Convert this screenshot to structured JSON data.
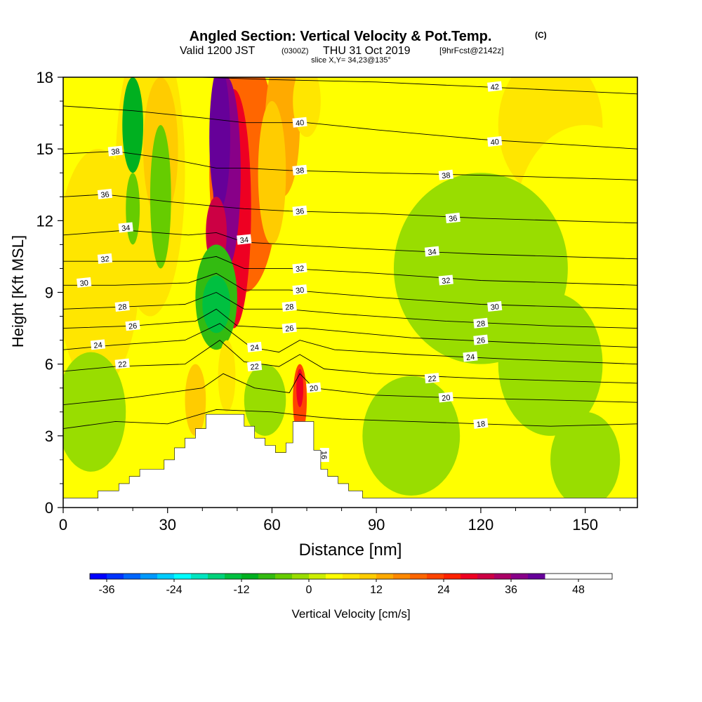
{
  "chart_data": {
    "type": "heatmap",
    "title": "Angled Section: Vertical Velocity & Pot.Temp.",
    "title_mark": "(C)",
    "subtitle": {
      "prefix": "Valid 1200 JST",
      "utc": "(0300Z)",
      "date": "THU 31 Oct 2019",
      "forecast": "[9hrFcst@2142z]"
    },
    "slice_label": "slice X,Y= 34,23@135°",
    "xlabel": "Distance [nm]",
    "ylabel": "Height [Kft MSL]",
    "xlim": [
      0,
      165
    ],
    "ylim": [
      0,
      18
    ],
    "x_ticks": [
      "0",
      "30",
      "60",
      "90",
      "120",
      "150"
    ],
    "y_ticks": [
      "0",
      "3",
      "6",
      "9",
      "12",
      "15",
      "18"
    ],
    "colorbar": {
      "label": "Vertical Velocity [cm/s]",
      "ticks": [
        "-36",
        "-24",
        "-12",
        "0",
        "12",
        "24",
        "36",
        "48"
      ],
      "tick_values": [
        -36,
        -24,
        -12,
        0,
        12,
        24,
        36,
        48
      ],
      "min": -39,
      "max": 54,
      "step": 3,
      "colors": [
        "#0000ff",
        "#0033ff",
        "#0066ff",
        "#0099ff",
        "#00ccff",
        "#00ffff",
        "#00e5c0",
        "#00d27a",
        "#00c040",
        "#00b020",
        "#33bb11",
        "#66cc00",
        "#99dd00",
        "#ccee00",
        "#ffff00",
        "#ffe600",
        "#ffcc00",
        "#ffaa00",
        "#ff8800",
        "#ff6600",
        "#ff4400",
        "#ff2200",
        "#ee0022",
        "#cc0044",
        "#aa0066",
        "#880088",
        "#660099"
      ]
    },
    "terrain_kft": [
      [
        0,
        0.4
      ],
      [
        10,
        0.4
      ],
      [
        10,
        0.7
      ],
      [
        16,
        0.7
      ],
      [
        16,
        1.0
      ],
      [
        19,
        1.0
      ],
      [
        19,
        1.3
      ],
      [
        22,
        1.3
      ],
      [
        22,
        1.6
      ],
      [
        29,
        1.6
      ],
      [
        29,
        2.0
      ],
      [
        32,
        2.0
      ],
      [
        32,
        2.5
      ],
      [
        35,
        2.5
      ],
      [
        35,
        2.9
      ],
      [
        38,
        2.9
      ],
      [
        38,
        3.3
      ],
      [
        41,
        3.3
      ],
      [
        41,
        3.9
      ],
      [
        52,
        3.9
      ],
      [
        52,
        3.4
      ],
      [
        55,
        3.4
      ],
      [
        55,
        2.9
      ],
      [
        58,
        2.9
      ],
      [
        58,
        2.6
      ],
      [
        61,
        2.6
      ],
      [
        61,
        2.3
      ],
      [
        64,
        2.3
      ],
      [
        64,
        2.7
      ],
      [
        66,
        2.7
      ],
      [
        66,
        3.6
      ],
      [
        72,
        3.6
      ],
      [
        72,
        2.4
      ],
      [
        74,
        2.4
      ],
      [
        74,
        1.6
      ],
      [
        76,
        1.6
      ],
      [
        76,
        1.3
      ],
      [
        79,
        1.3
      ],
      [
        79,
        1.0
      ],
      [
        82,
        1.0
      ],
      [
        82,
        0.7
      ],
      [
        86,
        0.7
      ],
      [
        86,
        0.4
      ],
      [
        165,
        0.4
      ]
    ],
    "isentropes": [
      {
        "label": "16",
        "points": [
          [
            70,
            0.5
          ],
          [
            72,
            1.5
          ],
          [
            73,
            2.4
          ]
        ],
        "label_at": [
          75,
          2.2
        ],
        "label_rot": 90
      },
      {
        "label": "18",
        "points": [
          [
            0,
            3.3
          ],
          [
            15,
            3.6
          ],
          [
            30,
            3.5
          ],
          [
            44,
            4.1
          ],
          [
            60,
            4.0
          ],
          [
            72,
            3.8
          ],
          [
            80,
            3.7
          ],
          [
            100,
            3.6
          ],
          [
            120,
            3.5
          ],
          [
            140,
            3.4
          ],
          [
            165,
            3.5
          ]
        ],
        "label_at": [
          120,
          3.5
        ]
      },
      {
        "label": "20",
        "points": [
          [
            0,
            4.3
          ],
          [
            20,
            4.6
          ],
          [
            40,
            5.0
          ],
          [
            46,
            5.6
          ],
          [
            55,
            5.0
          ],
          [
            65,
            4.8
          ],
          [
            68,
            5.6
          ],
          [
            72,
            5.0
          ],
          [
            90,
            4.7
          ],
          [
            110,
            4.6
          ],
          [
            140,
            4.5
          ],
          [
            165,
            4.4
          ]
        ],
        "label_at": [
          110,
          4.6
        ],
        "label2_at": [
          72,
          5.0
        ]
      },
      {
        "label": "22",
        "points": [
          [
            0,
            5.7
          ],
          [
            15,
            5.9
          ],
          [
            35,
            6.0
          ],
          [
            45,
            7.0
          ],
          [
            52,
            6.1
          ],
          [
            62,
            5.9
          ],
          [
            68,
            6.4
          ],
          [
            75,
            5.8
          ],
          [
            90,
            5.6
          ],
          [
            120,
            5.4
          ],
          [
            165,
            5.2
          ]
        ],
        "label_at": [
          106,
          5.4
        ],
        "label2_at": [
          55,
          5.9
        ],
        "label3_at": [
          17,
          6.0
        ]
      },
      {
        "label": "24",
        "points": [
          [
            0,
            6.6
          ],
          [
            15,
            6.8
          ],
          [
            35,
            7.0
          ],
          [
            45,
            7.7
          ],
          [
            54,
            6.7
          ],
          [
            62,
            6.5
          ],
          [
            68,
            7.0
          ],
          [
            78,
            6.6
          ],
          [
            100,
            6.4
          ],
          [
            130,
            6.2
          ],
          [
            165,
            6.0
          ]
        ],
        "label_at": [
          117,
          6.3
        ],
        "label2_at": [
          55,
          6.7
        ],
        "label3_at": [
          10,
          6.8
        ]
      },
      {
        "label": "26",
        "points": [
          [
            0,
            7.5
          ],
          [
            20,
            7.6
          ],
          [
            38,
            7.8
          ],
          [
            44,
            8.3
          ],
          [
            50,
            7.6
          ],
          [
            62,
            7.5
          ],
          [
            70,
            7.5
          ],
          [
            100,
            7.1
          ],
          [
            130,
            6.9
          ],
          [
            165,
            6.7
          ]
        ],
        "label_at": [
          120,
          7.0
        ],
        "label2_at": [
          65,
          7.5
        ],
        "label3_at": [
          20,
          7.6
        ]
      },
      {
        "label": "28",
        "points": [
          [
            0,
            8.3
          ],
          [
            18,
            8.4
          ],
          [
            35,
            8.5
          ],
          [
            44,
            9.0
          ],
          [
            52,
            8.3
          ],
          [
            64,
            8.3
          ],
          [
            80,
            8.1
          ],
          [
            110,
            7.8
          ],
          [
            140,
            7.6
          ],
          [
            165,
            7.5
          ]
        ],
        "label_at": [
          120,
          7.7
        ],
        "label2_at": [
          65,
          8.4
        ],
        "label3_at": [
          17,
          8.4
        ]
      },
      {
        "label": "30",
        "points": [
          [
            0,
            9.3
          ],
          [
            15,
            9.3
          ],
          [
            36,
            9.4
          ],
          [
            44,
            9.8
          ],
          [
            52,
            9.1
          ],
          [
            65,
            9.1
          ],
          [
            90,
            8.8
          ],
          [
            120,
            8.5
          ],
          [
            165,
            8.3
          ]
        ],
        "label_at": [
          124,
          8.4
        ],
        "label2_at": [
          68,
          9.1
        ],
        "label3_at": [
          6,
          9.4
        ]
      },
      {
        "label": "32",
        "points": [
          [
            0,
            10.3
          ],
          [
            15,
            10.3
          ],
          [
            36,
            10.3
          ],
          [
            44,
            10.5
          ],
          [
            52,
            10.0
          ],
          [
            65,
            10.0
          ],
          [
            90,
            9.8
          ],
          [
            120,
            9.5
          ],
          [
            165,
            9.3
          ]
        ],
        "label_at": [
          110,
          9.5
        ],
        "label2_at": [
          68,
          10.0
        ],
        "label3_at": [
          12,
          10.4
        ]
      },
      {
        "label": "34",
        "points": [
          [
            0,
            11.4
          ],
          [
            18,
            11.6
          ],
          [
            36,
            11.4
          ],
          [
            44,
            11.5
          ],
          [
            52,
            11.1
          ],
          [
            65,
            11.0
          ],
          [
            90,
            10.8
          ],
          [
            120,
            10.6
          ],
          [
            165,
            10.4
          ]
        ],
        "label_at": [
          106,
          10.7
        ],
        "label2_at": [
          52,
          11.2
        ],
        "label3_at": [
          18,
          11.7
        ]
      },
      {
        "label": "36",
        "points": [
          [
            0,
            13.0
          ],
          [
            12,
            13.1
          ],
          [
            30,
            12.8
          ],
          [
            44,
            12.6
          ],
          [
            52,
            12.5
          ],
          [
            65,
            12.4
          ],
          [
            90,
            12.3
          ],
          [
            120,
            12.1
          ],
          [
            165,
            11.9
          ]
        ],
        "label_at": [
          112,
          12.1
        ],
        "label2_at": [
          68,
          12.4
        ],
        "label3_at": [
          12,
          13.1
        ]
      },
      {
        "label": "38",
        "points": [
          [
            0,
            14.8
          ],
          [
            15,
            14.9
          ],
          [
            30,
            14.6
          ],
          [
            44,
            14.2
          ],
          [
            52,
            14.2
          ],
          [
            65,
            14.1
          ],
          [
            90,
            14.0
          ],
          [
            120,
            13.9
          ],
          [
            165,
            13.7
          ]
        ],
        "label_at": [
          110,
          13.9
        ],
        "label2_at": [
          68,
          14.1
        ],
        "label3_at": [
          15,
          14.9
        ]
      },
      {
        "label": "40",
        "points": [
          [
            0,
            16.8
          ],
          [
            20,
            16.6
          ],
          [
            40,
            16.3
          ],
          [
            52,
            16.1
          ],
          [
            70,
            16.1
          ],
          [
            90,
            15.8
          ],
          [
            120,
            15.4
          ],
          [
            165,
            15.0
          ]
        ],
        "label_at": [
          124,
          15.3
        ],
        "label2_at": [
          68,
          16.1
        ]
      },
      {
        "label": "42",
        "points": [
          [
            40,
            18.0
          ],
          [
            60,
            17.9
          ],
          [
            90,
            17.8
          ],
          [
            120,
            17.6
          ],
          [
            165,
            17.3
          ]
        ],
        "label_at": [
          124,
          17.6
        ]
      }
    ]
  }
}
